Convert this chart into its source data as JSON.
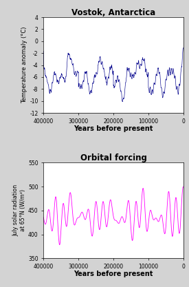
{
  "title1": "Vostok, Antarctica",
  "ylabel1": "Temperature anomaly (°C)",
  "xlabel1": "Years before present",
  "ylim1": [
    -12,
    4
  ],
  "yticks1": [
    -12,
    -10,
    -8,
    -6,
    -4,
    -2,
    0,
    2,
    4
  ],
  "xticks1": [
    0,
    100000,
    200000,
    300000,
    400000
  ],
  "xticklabels1": [
    "0",
    "100000",
    "200000",
    "300000",
    "400000"
  ],
  "line_color1": "#00008B",
  "title2": "Orbital forcing",
  "ylabel2": "July solar radiation\nat 65°N (W/m²)",
  "xlabel2": "Years before present",
  "ylim2": [
    350,
    550
  ],
  "yticks2": [
    350,
    400,
    450,
    500,
    550
  ],
  "xticks2": [
    0,
    100000,
    200000,
    300000,
    400000
  ],
  "xticklabels2": [
    "0",
    "100000",
    "200000",
    "300000",
    "400000"
  ],
  "line_color2": "#FF00FF",
  "bg_color": "#d3d3d3",
  "plot_bg": "#ffffff"
}
